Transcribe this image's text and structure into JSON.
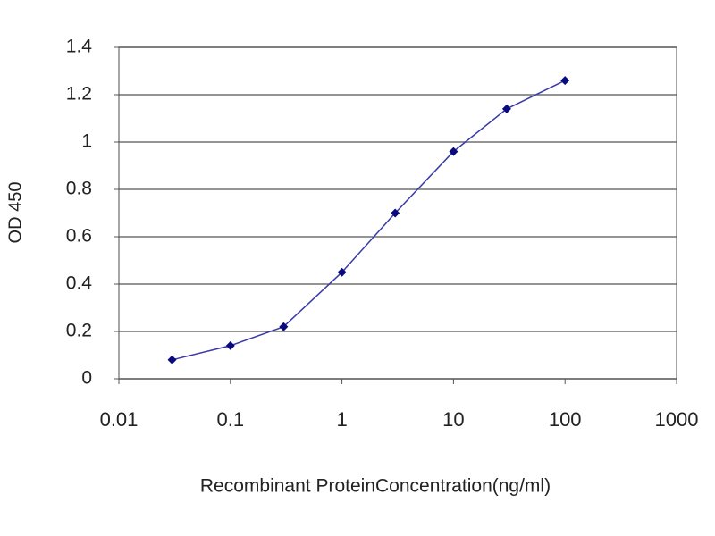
{
  "chart_data": {
    "type": "line",
    "x_label": "Recombinant ProteinConcentration(ng/ml)",
    "y_label": "OD 450",
    "x": [
      0.03,
      0.1,
      0.3,
      1,
      3,
      10,
      30,
      100
    ],
    "series": [
      {
        "color": "#3a3aa8",
        "marker_color": "#0a0a80",
        "values": [
          0.08,
          0.14,
          0.22,
          0.45,
          0.7,
          0.96,
          1.14,
          1.26
        ]
      }
    ],
    "xscale": "log",
    "xlim": [
      0.01,
      1000
    ],
    "xticks": [
      0.01,
      0.1,
      1,
      10,
      100,
      1000
    ],
    "ylim": [
      0,
      1.4
    ],
    "yticks": [
      0,
      0.2,
      0.4,
      0.6,
      0.8,
      1,
      1.2,
      1.4
    ],
    "grid": true
  }
}
